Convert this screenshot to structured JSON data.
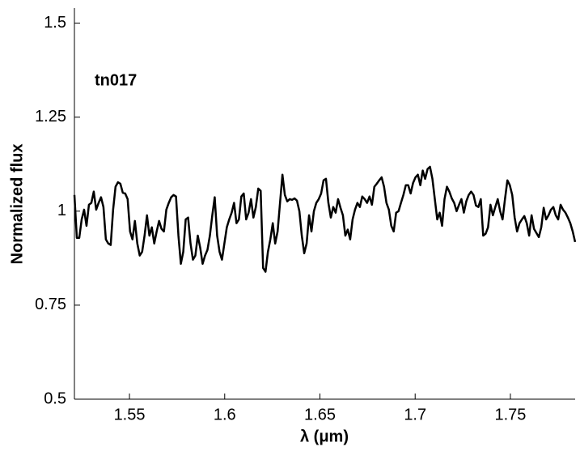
{
  "chart_data": {
    "type": "line",
    "annotation": "tn017",
    "xlabel": "λ (μm)",
    "ylabel": "Normalized flux",
    "xlim": [
      1.5211,
      1.784
    ],
    "ylim": [
      0.5,
      1.54
    ],
    "xticks": [
      1.55,
      1.6,
      1.65,
      1.7,
      1.75
    ],
    "yticks": [
      0.5,
      0.75,
      1,
      1.25,
      1.5
    ],
    "x": [
      1.5211,
      1.52237,
      1.52364,
      1.52491,
      1.52618,
      1.52745,
      1.52872,
      1.52999,
      1.53126,
      1.53253,
      1.5338,
      1.53507,
      1.53634,
      1.53761,
      1.53888,
      1.54015,
      1.54142,
      1.54269,
      1.54396,
      1.54523,
      1.5465,
      1.54777,
      1.54904,
      1.55031,
      1.55158,
      1.55285,
      1.55412,
      1.55539,
      1.55666,
      1.55793,
      1.5592,
      1.56047,
      1.56174,
      1.56301,
      1.56428,
      1.56555,
      1.56682,
      1.56809,
      1.56936,
      1.57063,
      1.5719,
      1.57317,
      1.57444,
      1.57571,
      1.57698,
      1.57825,
      1.57952,
      1.58079,
      1.58206,
      1.58333,
      1.5846,
      1.58587,
      1.58714,
      1.58841,
      1.58968,
      1.59095,
      1.59222,
      1.59349,
      1.59476,
      1.59603,
      1.5973,
      1.59857,
      1.59984,
      1.60111,
      1.60238,
      1.60365,
      1.60492,
      1.60619,
      1.60746,
      1.60873,
      1.61,
      1.61127,
      1.61254,
      1.61381,
      1.61508,
      1.61635,
      1.61762,
      1.61889,
      1.62016,
      1.62143,
      1.6227,
      1.62397,
      1.62524,
      1.62651,
      1.62778,
      1.62905,
      1.63032,
      1.63159,
      1.63286,
      1.63413,
      1.6354,
      1.63667,
      1.63794,
      1.63921,
      1.64048,
      1.64175,
      1.64302,
      1.64429,
      1.64556,
      1.64683,
      1.6481,
      1.64937,
      1.65064,
      1.65191,
      1.65318,
      1.65445,
      1.65572,
      1.65699,
      1.65826,
      1.65953,
      1.6608,
      1.66207,
      1.66334,
      1.66461,
      1.66588,
      1.66715,
      1.66842,
      1.66969,
      1.67096,
      1.67223,
      1.6735,
      1.67477,
      1.67604,
      1.67731,
      1.67858,
      1.67985,
      1.68112,
      1.68239,
      1.68366,
      1.68493,
      1.6862,
      1.68747,
      1.68874,
      1.69001,
      1.69128,
      1.69255,
      1.69382,
      1.69509,
      1.69636,
      1.69763,
      1.6989,
      1.70017,
      1.70144,
      1.70271,
      1.70398,
      1.70525,
      1.70652,
      1.70779,
      1.70906,
      1.71033,
      1.7116,
      1.71287,
      1.71414,
      1.71541,
      1.71668,
      1.71795,
      1.71922,
      1.72049,
      1.72176,
      1.72303,
      1.7243,
      1.72557,
      1.72684,
      1.72811,
      1.72938,
      1.73065,
      1.73192,
      1.73319,
      1.73446,
      1.73573,
      1.737,
      1.73827,
      1.73954,
      1.74081,
      1.74208,
      1.74335,
      1.74462,
      1.74589,
      1.74716,
      1.74843,
      1.7497,
      1.75097,
      1.75224,
      1.75351,
      1.75478,
      1.75605,
      1.75732,
      1.75859,
      1.75986,
      1.76113,
      1.7624,
      1.76367,
      1.76494,
      1.76621,
      1.76748,
      1.76875,
      1.77002,
      1.77129,
      1.77256,
      1.77383,
      1.7751,
      1.77637,
      1.77764,
      1.77891,
      1.78018,
      1.78145,
      1.78272,
      1.78399
    ],
    "series": [
      {
        "color": "#000000",
        "values": [
          1.043,
          0.929,
          0.929,
          0.978,
          1.004,
          0.961,
          1.017,
          1.022,
          1.052,
          1.004,
          1.022,
          1.037,
          1.011,
          0.925,
          0.914,
          0.91,
          1.004,
          1.065,
          1.077,
          1.073,
          1.049,
          1.047,
          1.032,
          0.946,
          0.925,
          0.974,
          0.914,
          0.882,
          0.892,
          0.935,
          0.989,
          0.935,
          0.957,
          0.914,
          0.946,
          0.974,
          0.953,
          0.946,
          1.004,
          1.022,
          1.037,
          1.043,
          1.039,
          0.935,
          0.86,
          0.892,
          0.978,
          0.983,
          0.914,
          0.871,
          0.882,
          0.935,
          0.903,
          0.86,
          0.882,
          0.897,
          0.935,
          0.989,
          1.037,
          0.935,
          0.892,
          0.871,
          0.914,
          0.957,
          0.978,
          0.996,
          1.022,
          0.968,
          0.978,
          1.039,
          1.047,
          0.978,
          0.996,
          1.032,
          0.983,
          1.011,
          1.06,
          1.054,
          0.849,
          0.839,
          0.892,
          0.925,
          0.968,
          0.914,
          0.946,
          1.022,
          1.097,
          1.043,
          1.026,
          1.032,
          1.03,
          1.034,
          1.028,
          1.0,
          0.935,
          0.888,
          0.914,
          0.989,
          0.946,
          1.0,
          1.022,
          1.032,
          1.047,
          1.082,
          1.086,
          1.022,
          0.983,
          1.011,
          0.996,
          1.032,
          1.009,
          0.989,
          0.935,
          0.951,
          0.925,
          0.978,
          1.004,
          1.022,
          1.011,
          1.039,
          1.032,
          1.022,
          1.039,
          1.017,
          1.065,
          1.073,
          1.082,
          1.09,
          1.065,
          1.022,
          1.004,
          0.961,
          0.946,
          0.996,
          1.0,
          1.022,
          1.043,
          1.069,
          1.069,
          1.047,
          1.075,
          1.09,
          1.097,
          1.069,
          1.108,
          1.086,
          1.112,
          1.118,
          1.086,
          1.032,
          0.978,
          0.996,
          0.961,
          1.032,
          1.065,
          1.052,
          1.034,
          1.022,
          1.0,
          1.017,
          1.032,
          0.996,
          1.026,
          1.043,
          1.052,
          1.043,
          1.015,
          1.011,
          1.032,
          0.935,
          0.94,
          0.957,
          1.017,
          0.989,
          1.011,
          1.032,
          1.0,
          0.978,
          1.032,
          1.082,
          1.069,
          1.043,
          0.983,
          0.946,
          0.968,
          0.978,
          0.987,
          0.968,
          0.935,
          0.989,
          0.953,
          0.942,
          0.931,
          0.957,
          1.009,
          0.978,
          0.989,
          1.004,
          1.011,
          0.989,
          0.978,
          1.017,
          1.004,
          0.996,
          0.983,
          0.968,
          0.946,
          0.918
        ]
      }
    ]
  }
}
